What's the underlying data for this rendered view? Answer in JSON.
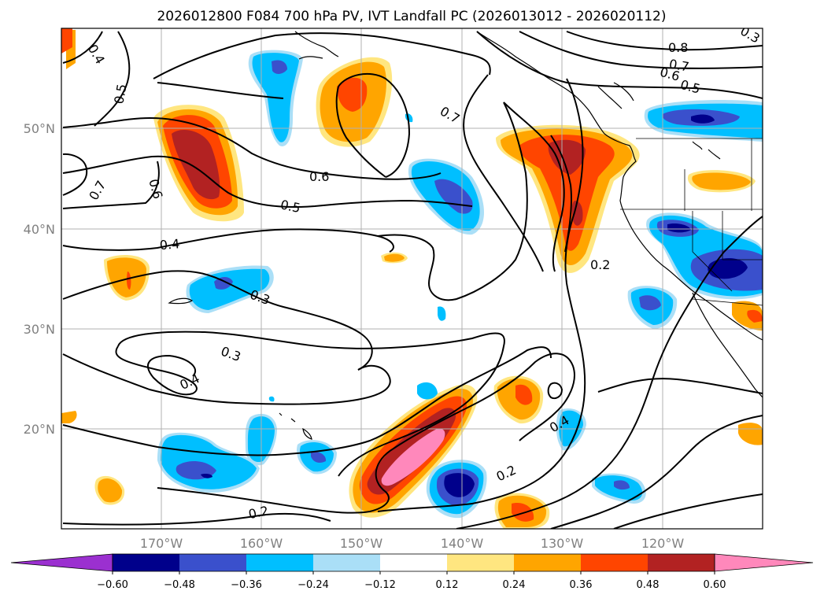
{
  "title": "2026012800 F084 700 hPa PV, IVT Landfall PC (2026013012 - 2026020112)",
  "map": {
    "lon_range": [
      -180,
      -110
    ],
    "lat_range": [
      10,
      60
    ],
    "lon_ticks": [
      "170°W",
      "160°W",
      "150°W",
      "140°W",
      "130°W",
      "120°W"
    ],
    "lat_ticks": [
      "20°N",
      "30°N",
      "40°N",
      "50°N"
    ],
    "grid": true
  },
  "colorbar": {
    "levels": [
      "−0.60",
      "−0.48",
      "−0.36",
      "−0.24",
      "−0.12",
      "0.12",
      "0.24",
      "0.36",
      "0.48",
      "0.60"
    ],
    "colors": [
      "#9b30d0",
      "#00008b",
      "#3a50cc",
      "#00bfff",
      "#aadff7",
      "#ffffff",
      "#ffe680",
      "#ffa500",
      "#ff4500",
      "#b22222",
      "#ff88bb"
    ],
    "extend": "both"
  },
  "contour_labels": {
    "c1": "0.4",
    "c2": "0.5",
    "c3": "0.7",
    "c4": "0.6",
    "c5": "0.6",
    "c6": "0.5",
    "c7": "0.7",
    "c8": "0.8",
    "c9": "0.7",
    "c10": "0.6",
    "c11": "0.5",
    "c12": "0.4",
    "c13": "0.3",
    "c14": "0.3",
    "c15": "0.4",
    "c16": "0.2",
    "c17": "0.2",
    "c18": "0.4",
    "c19": "0.2",
    "c20": "0.3"
  }
}
